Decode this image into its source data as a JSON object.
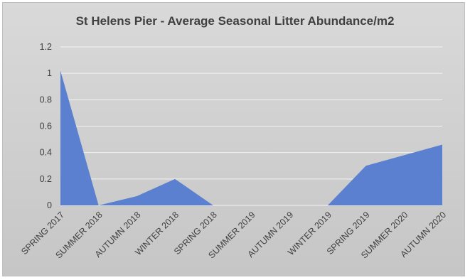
{
  "chart_data": {
    "type": "area",
    "title": "St Helens Pier - Average Seasonal Litter Abundance/m2",
    "categories": [
      "SPRING 2017",
      "SUMMER 2018",
      "AUTUMN 2018",
      "WINTER 2018",
      "SPRING 2018",
      "SUMMER 2019",
      "AUTUMN 2019",
      "WINTER 2019",
      "SPRING 2019",
      "SUMMER 2020",
      "AUTUMN 2020"
    ],
    "values": [
      1.02,
      0.0,
      0.07,
      0.2,
      0.0,
      0.0,
      0.0,
      0.0,
      0.3,
      0.38,
      0.46
    ],
    "ylim": [
      0,
      1.2
    ],
    "yticks": [
      "0",
      "0.2",
      "0.4",
      "0.6",
      "0.8",
      "1",
      "1.2"
    ],
    "xlabel": "",
    "ylabel": "",
    "grid": true,
    "colors": {
      "fill": "#5b80d0",
      "grid": "#f2f2f2",
      "background": "#d0d0d0"
    }
  }
}
